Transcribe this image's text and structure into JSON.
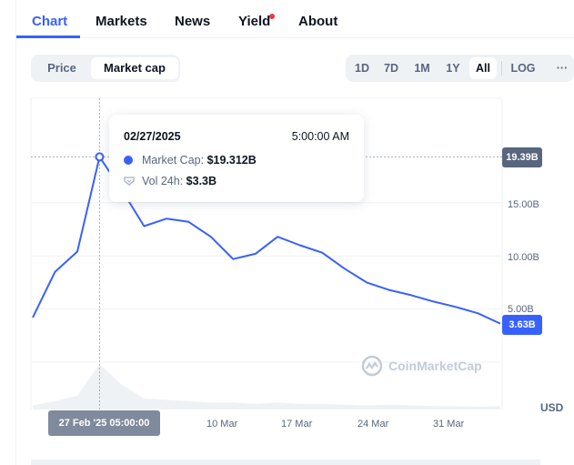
{
  "tabs": [
    {
      "label": "Chart",
      "active": true
    },
    {
      "label": "Markets",
      "active": false
    },
    {
      "label": "News",
      "active": false
    },
    {
      "label": "Yield",
      "active": false,
      "has_notification_dot": true
    },
    {
      "label": "About",
      "active": false
    }
  ],
  "view_toggle": {
    "options": [
      "Price",
      "Market cap"
    ],
    "selected": "Market cap"
  },
  "range": {
    "options": [
      "1D",
      "7D",
      "1M",
      "1Y",
      "All"
    ],
    "selected": "All",
    "log_label": "LOG",
    "more_label": "···"
  },
  "tooltip": {
    "date": "02/27/2025",
    "time": "5:00:00 AM",
    "market_cap_label": "Market Cap:",
    "market_cap_value": "$19.312B",
    "vol_label": "Vol 24h:",
    "vol_value": "$3.3B"
  },
  "price_tags": {
    "top": "19.39B",
    "last": "3.63B"
  },
  "axis": {
    "y_ticks": [
      "15.00B",
      "10.00B",
      "5.00B"
    ],
    "currency": "USD",
    "x_ticks": [
      "10 Mar",
      "17 Mar",
      "24 Mar",
      "31 Mar"
    ],
    "x_hover": "27 Feb '25 05:00:00"
  },
  "watermark": "CoinMarketCap",
  "colors": {
    "accent": "#3861fb",
    "line": "#3861fb",
    "grid": "#eff2f5",
    "muted": "#58667e"
  },
  "chart_data": {
    "type": "line",
    "title": "",
    "xlabel": "",
    "ylabel": "",
    "x": [
      "2025-02-24",
      "2025-02-25",
      "2025-02-26",
      "2025-02-27",
      "2025-02-28",
      "2025-03-02",
      "2025-03-04",
      "2025-03-06",
      "2025-03-08",
      "2025-03-10",
      "2025-03-12",
      "2025-03-14",
      "2025-03-16",
      "2025-03-18",
      "2025-03-20",
      "2025-03-22",
      "2025-03-24",
      "2025-03-26",
      "2025-03-28",
      "2025-03-30",
      "2025-04-01",
      "2025-04-03"
    ],
    "series": [
      {
        "values": [
          4.2,
          8.5,
          10.4,
          19.31,
          16.2,
          12.8,
          13.5,
          13.2,
          11.8,
          9.7,
          10.2,
          11.8,
          11.0,
          10.3,
          8.8,
          7.5,
          6.8,
          6.3,
          5.7,
          5.2,
          4.6,
          3.63
        ]
      }
    ],
    "volume": [
      0.3,
      0.6,
      1.0,
      3.3,
      1.8,
      0.8,
      0.7,
      0.6,
      0.5,
      0.5,
      0.4,
      0.5,
      0.4,
      0.4,
      0.35,
      0.3,
      0.35,
      0.3,
      0.25,
      0.25,
      0.2,
      0.25
    ],
    "ylim": [
      0,
      19.39
    ],
    "hover_value": 19.312,
    "grid": true,
    "legend": "none"
  }
}
